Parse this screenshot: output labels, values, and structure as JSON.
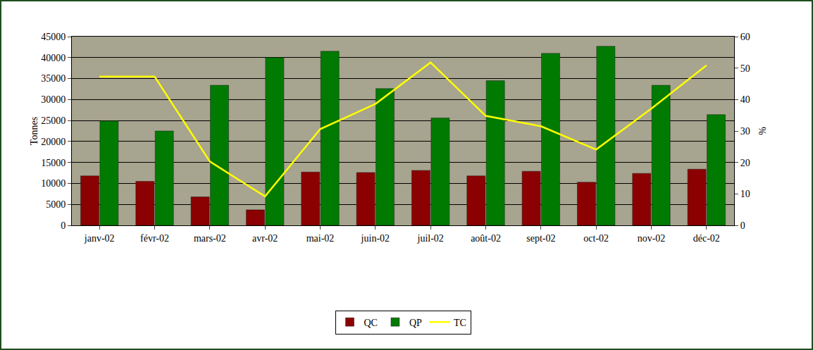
{
  "chart_data": {
    "type": "bar",
    "categories": [
      "janv-02",
      "févr-02",
      "mars-02",
      "avr-02",
      "mai-02",
      "juin-02",
      "juil-02",
      "août-02",
      "sept-02",
      "oct-02",
      "nov-02",
      "déc-02"
    ],
    "series": [
      {
        "name": "QC",
        "type": "bar",
        "color": "#8b0000",
        "values": [
          11800,
          10500,
          6800,
          3700,
          12700,
          12600,
          13100,
          11800,
          12900,
          10300,
          12400,
          13400
        ]
      },
      {
        "name": "QP",
        "type": "bar",
        "color": "#007a00",
        "values": [
          24900,
          22500,
          33400,
          40000,
          41500,
          32600,
          25600,
          34500,
          41000,
          42700,
          33400,
          26400
        ]
      },
      {
        "name": "TC",
        "type": "line",
        "axis": "y2",
        "color": "#ffff00",
        "values": [
          47.3,
          47.3,
          20.3,
          9.2,
          30.6,
          38.6,
          51.8,
          34.8,
          31.5,
          24.1,
          37.1,
          50.9
        ]
      }
    ],
    "y_label": "Tonnes",
    "y2_label": "%",
    "ylim": [
      0,
      45000
    ],
    "yticks": [
      0,
      5000,
      10000,
      15000,
      20000,
      25000,
      30000,
      35000,
      40000,
      45000
    ],
    "y2lim": [
      0,
      60
    ],
    "y2ticks": [
      0,
      10,
      20,
      30,
      40,
      50,
      60
    ],
    "grid": true,
    "legend": "bottom"
  }
}
